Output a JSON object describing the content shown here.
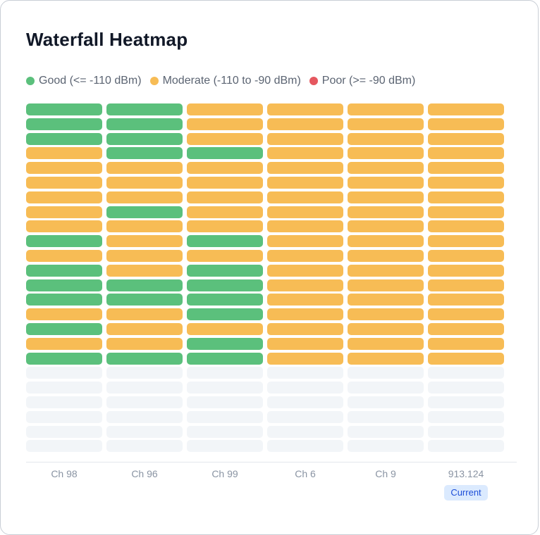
{
  "title": "Waterfall Heatmap",
  "legend": [
    {
      "label": "Good (<= -110 dBm)",
      "color": "#5bc07c",
      "icon": "good-dot-icon"
    },
    {
      "label": "Moderate (-110 to -90 dBm)",
      "color": "#f7bc55",
      "icon": "moderate-dot-icon"
    },
    {
      "label": "Poor (>= -90 dBm)",
      "color": "#e5575f",
      "icon": "poor-dot-icon"
    }
  ],
  "empty_color": "#f2f5f8",
  "columns": [
    "Ch 98",
    "Ch 96",
    "Ch 99",
    "Ch 6",
    "Ch 9",
    "913.124"
  ],
  "current_badge": "Current",
  "grid": [
    [
      "good",
      "good",
      "moderate",
      "moderate",
      "moderate",
      "moderate"
    ],
    [
      "good",
      "good",
      "moderate",
      "moderate",
      "moderate",
      "moderate"
    ],
    [
      "good",
      "good",
      "moderate",
      "moderate",
      "moderate",
      "moderate"
    ],
    [
      "moderate",
      "good",
      "good",
      "moderate",
      "moderate",
      "moderate"
    ],
    [
      "moderate",
      "moderate",
      "moderate",
      "moderate",
      "moderate",
      "moderate"
    ],
    [
      "moderate",
      "moderate",
      "moderate",
      "moderate",
      "moderate",
      "moderate"
    ],
    [
      "moderate",
      "moderate",
      "moderate",
      "moderate",
      "moderate",
      "moderate"
    ],
    [
      "moderate",
      "good",
      "moderate",
      "moderate",
      "moderate",
      "moderate"
    ],
    [
      "moderate",
      "moderate",
      "moderate",
      "moderate",
      "moderate",
      "moderate"
    ],
    [
      "good",
      "moderate",
      "good",
      "moderate",
      "moderate",
      "moderate"
    ],
    [
      "moderate",
      "moderate",
      "moderate",
      "moderate",
      "moderate",
      "moderate"
    ],
    [
      "good",
      "moderate",
      "good",
      "moderate",
      "moderate",
      "moderate"
    ],
    [
      "good",
      "good",
      "good",
      "moderate",
      "moderate",
      "moderate"
    ],
    [
      "good",
      "good",
      "good",
      "moderate",
      "moderate",
      "moderate"
    ],
    [
      "moderate",
      "moderate",
      "good",
      "moderate",
      "moderate",
      "moderate"
    ],
    [
      "good",
      "moderate",
      "moderate",
      "moderate",
      "moderate",
      "moderate"
    ],
    [
      "moderate",
      "moderate",
      "good",
      "moderate",
      "moderate",
      "moderate"
    ],
    [
      "good",
      "good",
      "good",
      "moderate",
      "moderate",
      "moderate"
    ],
    [
      "empty",
      "empty",
      "empty",
      "empty",
      "empty",
      "empty"
    ],
    [
      "empty",
      "empty",
      "empty",
      "empty",
      "empty",
      "empty"
    ],
    [
      "empty",
      "empty",
      "empty",
      "empty",
      "empty",
      "empty"
    ],
    [
      "empty",
      "empty",
      "empty",
      "empty",
      "empty",
      "empty"
    ],
    [
      "empty",
      "empty",
      "empty",
      "empty",
      "empty",
      "empty"
    ],
    [
      "empty",
      "empty",
      "empty",
      "empty",
      "empty",
      "empty"
    ]
  ]
}
